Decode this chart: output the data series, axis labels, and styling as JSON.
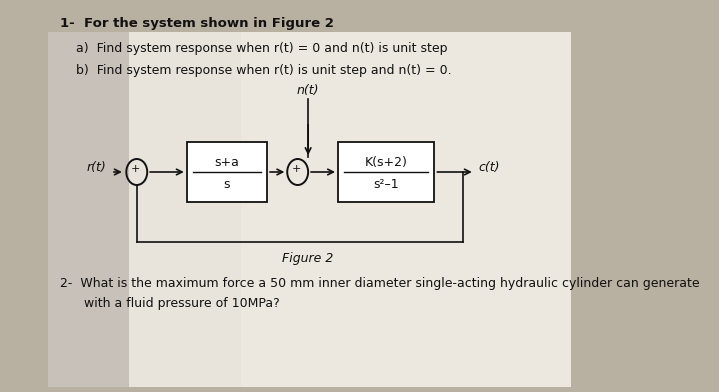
{
  "bg_color": "#b8b0a0",
  "paper_color": "#d8d4cc",
  "title_line1": "1-  For the system shown in Figure 2",
  "line_a": "a)  Find system response when r(t) = 0 and n(t) is unit step",
  "line_b": "b)  Find system response when r(t) is unit step and n(t) = 0.",
  "figure_label": "Figure 2",
  "q2_line1": "2-  What is the maximum force a 50 mm inner diameter single-acting hydraulic cylinder can generate",
  "q2_line2": "      with a fluid pressure of 10MPa?",
  "signal_rt": "r(t)",
  "signal_nt": "n(t)",
  "signal_ct": "c(t)",
  "block1_top": "s+a",
  "block1_bot": "s",
  "block2_top": "K(s+2)",
  "block2_bot": "s²–1",
  "text_color": "#111111",
  "box_color": "#111111",
  "lw": 1.2
}
